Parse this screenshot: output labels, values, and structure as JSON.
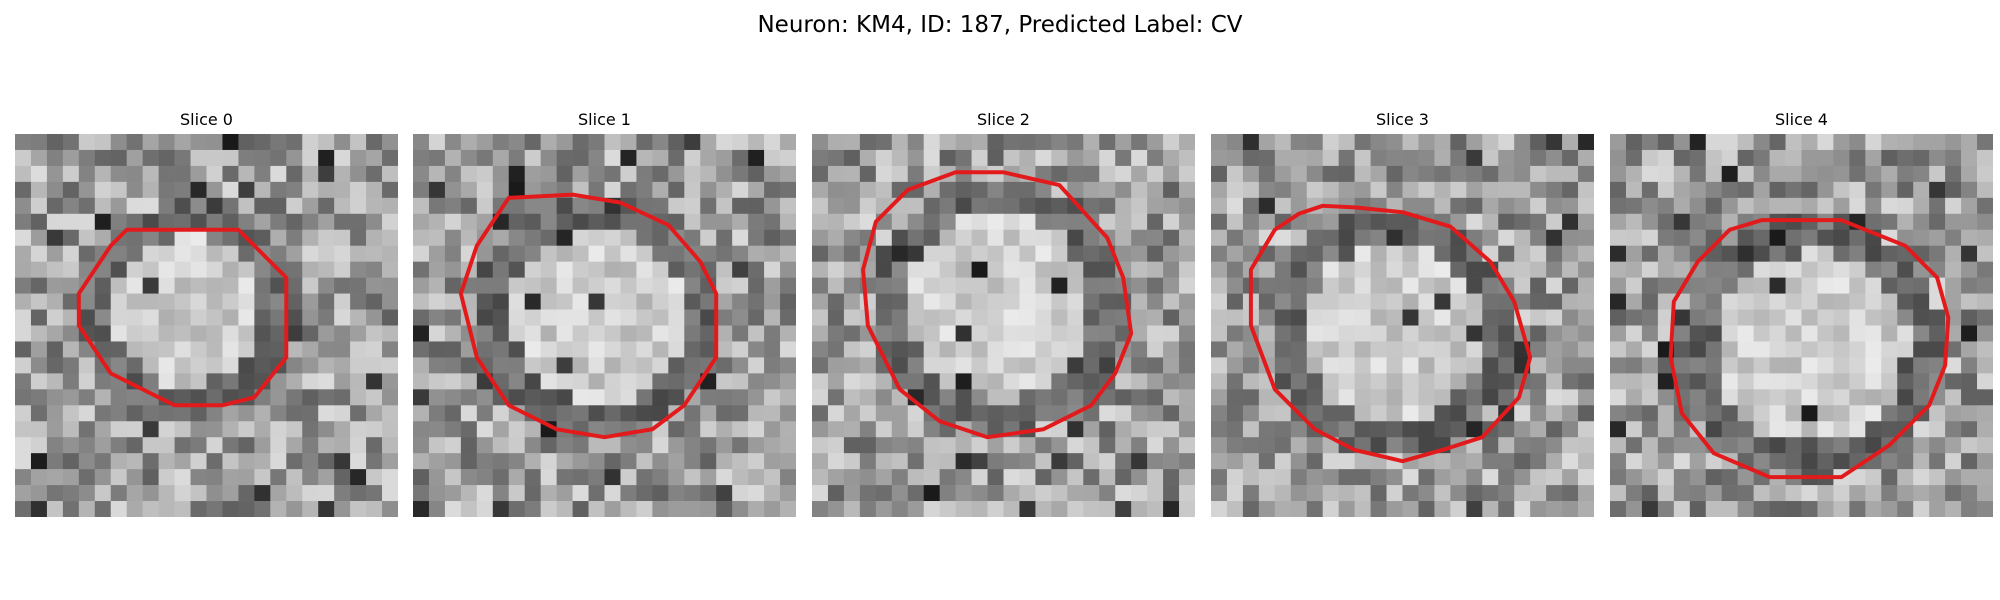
{
  "figure": {
    "title": "Neuron: KM4, ID: 187, Predicted Label: CV"
  },
  "panels": [
    {
      "title": "Slice 0"
    },
    {
      "title": "Slice 1"
    },
    {
      "title": "Slice 2"
    },
    {
      "title": "Slice 3"
    },
    {
      "title": "Slice 4"
    }
  ],
  "colors": {
    "contour": "#e31a1c",
    "background": "#ffffff"
  }
}
